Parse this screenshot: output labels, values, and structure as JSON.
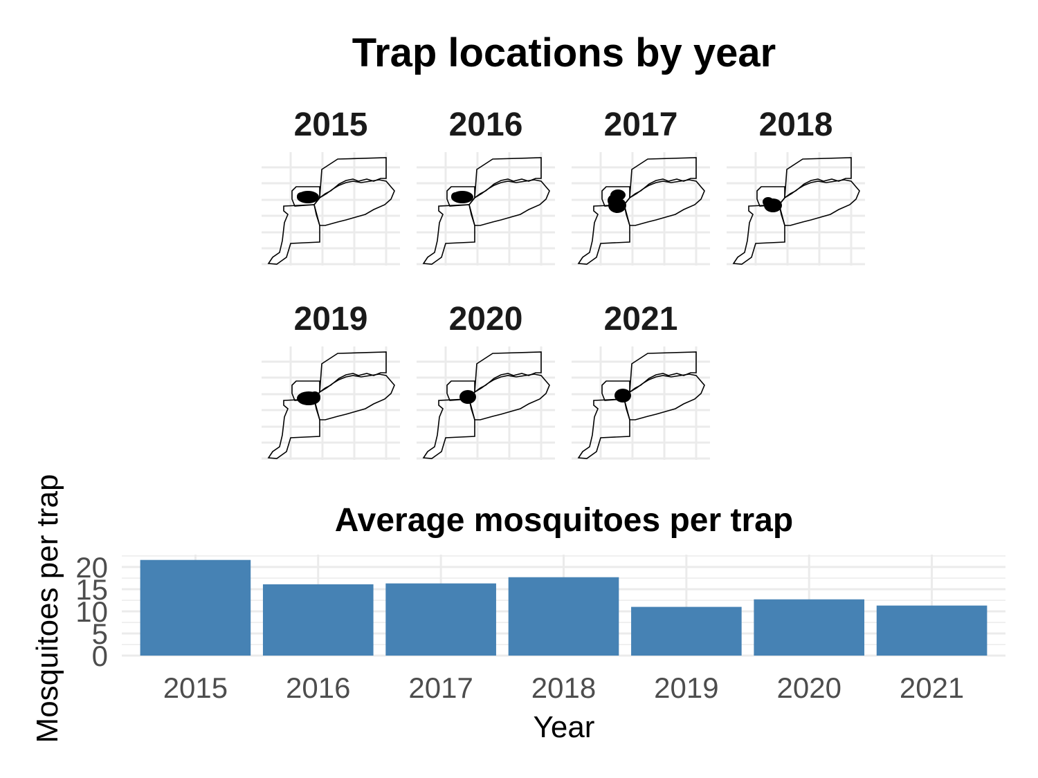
{
  "maps": {
    "title": "Trap locations by year",
    "panels": [
      "2015",
      "2016",
      "2017",
      "2018",
      "2019",
      "2020",
      "2021"
    ]
  },
  "chart_data": {
    "type": "bar",
    "title": "Average mosquitoes per trap",
    "xlabel": "Year",
    "ylabel": "Mosquitoes per trap",
    "categories": [
      "2015",
      "2016",
      "2017",
      "2018",
      "2019",
      "2020",
      "2021"
    ],
    "values": [
      21.6,
      16.1,
      16.3,
      17.7,
      11.0,
      12.7,
      11.3
    ],
    "yticks": [
      "0",
      "5",
      "10",
      "15",
      "20"
    ],
    "ylim": [
      0,
      22.8
    ],
    "grid": true,
    "bar_color": "#4682B4"
  }
}
